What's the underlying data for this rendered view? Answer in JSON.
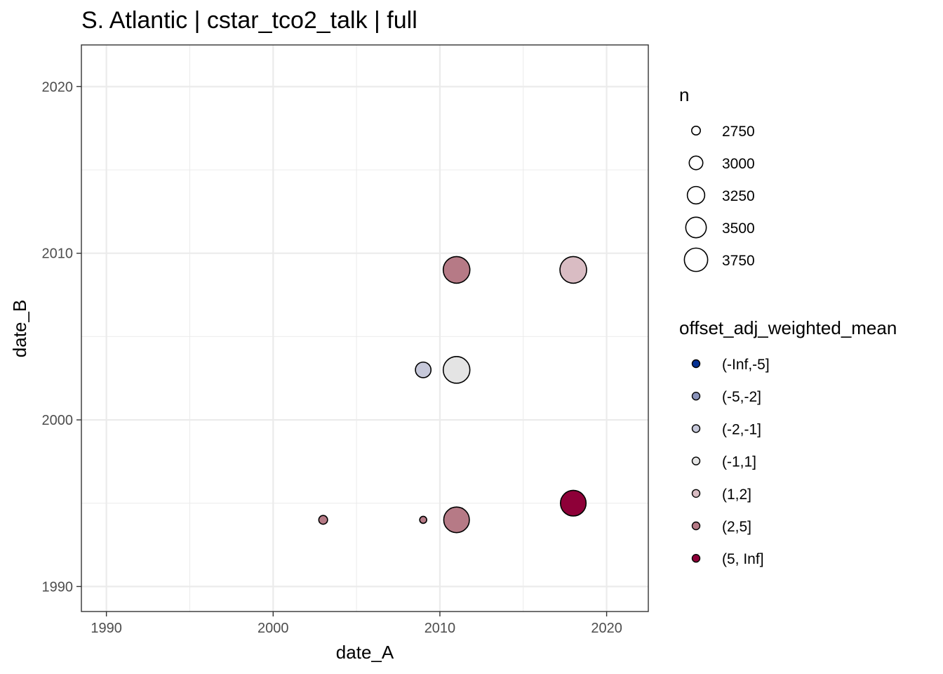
{
  "chart_data": {
    "type": "scatter",
    "title": "S. Atlantic | cstar_tco2_talk | full",
    "xlabel": "date_A",
    "ylabel": "date_B",
    "xlim": [
      1988.5,
      2022.5
    ],
    "ylim": [
      1988.5,
      2022.5
    ],
    "x_ticks": [
      1990,
      2000,
      2010,
      2020
    ],
    "y_ticks": [
      1990,
      2000,
      2010,
      2020
    ],
    "grid": true,
    "points": [
      {
        "x": 2003,
        "y": 1994,
        "n": 2650,
        "bin": "(2,5]"
      },
      {
        "x": 2009,
        "y": 1994,
        "n": 2600,
        "bin": "(2,5]"
      },
      {
        "x": 2011,
        "y": 1994,
        "n": 3700,
        "bin": "(2,5]"
      },
      {
        "x": 2018,
        "y": 1995,
        "n": 3700,
        "bin": "(5, Inf]"
      },
      {
        "x": 2009,
        "y": 2003,
        "n": 2950,
        "bin": "(-2,-1]"
      },
      {
        "x": 2011,
        "y": 2003,
        "n": 3800,
        "bin": "(-1,1]"
      },
      {
        "x": 2011,
        "y": 2009,
        "n": 3800,
        "bin": "(2,5]"
      },
      {
        "x": 2018,
        "y": 2009,
        "n": 3800,
        "bin": "(1,2]"
      }
    ],
    "size_legend": {
      "title": "n",
      "values": [
        2750,
        3000,
        3250,
        3500,
        3750
      ]
    },
    "color_legend": {
      "title": "offset_adj_weighted_mean",
      "items": [
        {
          "label": "(-Inf,-5]",
          "color": "#053193"
        },
        {
          "label": "(-5,-2]",
          "color": "#8a93ba"
        },
        {
          "label": "(-2,-1]",
          "color": "#c6c8da"
        },
        {
          "label": "(-1,1]",
          "color": "#e4e4e4"
        },
        {
          "label": "(1,2]",
          "color": "#d9bcc3"
        },
        {
          "label": "(2,5]",
          "color": "#b67a86"
        },
        {
          "label": "(5, Inf]",
          "color": "#8e0038"
        }
      ]
    }
  }
}
